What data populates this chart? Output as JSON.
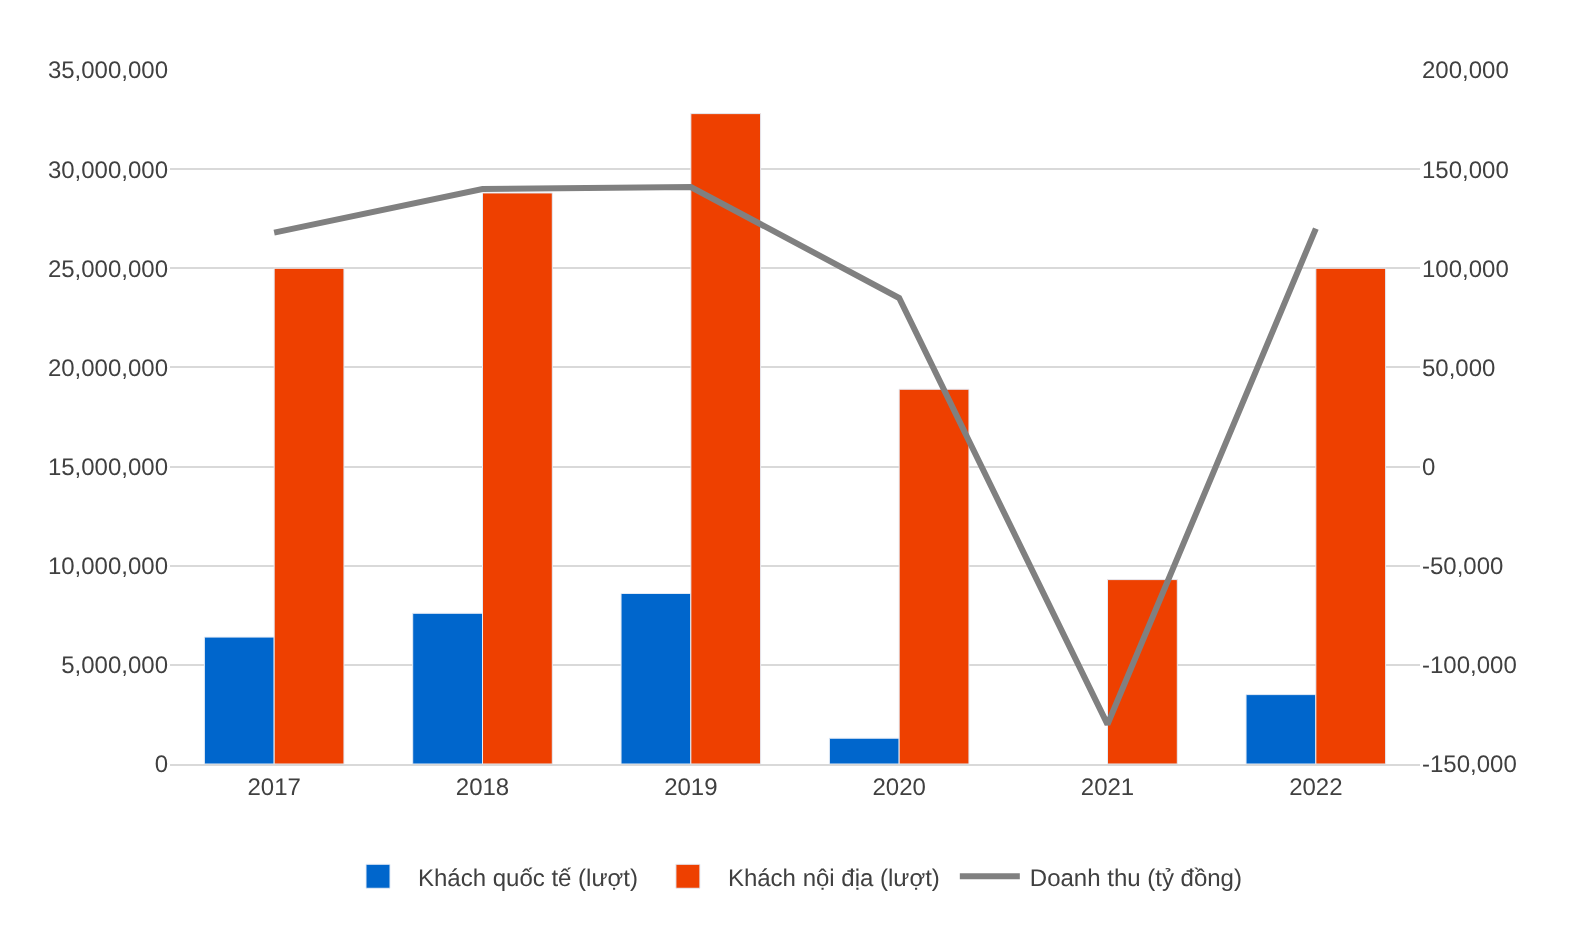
{
  "chart_data": {
    "type": "bar",
    "categories": [
      "2017",
      "2018",
      "2019",
      "2020",
      "2021",
      "2022"
    ],
    "series": [
      {
        "name": "Khách quốc tế (lượt)",
        "color": "#0066cc",
        "values": [
          6400000,
          7600000,
          8600000,
          1300000,
          null,
          3500000
        ]
      },
      {
        "name": "Khách nội địa (lượt)",
        "color": "#ee4000",
        "values": [
          25000000,
          28800000,
          32800000,
          18900000,
          9300000,
          25000000
        ]
      },
      {
        "name": "Doanh thu (tỷ đồng)",
        "type": "line",
        "axis": "y2",
        "color": "#808080",
        "values": [
          118000,
          140000,
          141000,
          85000,
          -130000,
          120000
        ]
      }
    ],
    "ylim": [
      0,
      35000000
    ],
    "yticks": [
      {
        "value": 0,
        "label": "0"
      },
      {
        "value": 5000000,
        "label": "5,000,000"
      },
      {
        "value": 10000000,
        "label": "10,000,000"
      },
      {
        "value": 15000000,
        "label": "15,000,000"
      },
      {
        "value": 20000000,
        "label": "20,000,000"
      },
      {
        "value": 25000000,
        "label": "25,000,000"
      },
      {
        "value": 30000000,
        "label": "30,000,000"
      },
      {
        "value": 35000000,
        "label": "35,000,000"
      }
    ],
    "y2lim": [
      -150000,
      200000
    ],
    "y2ticks": [
      {
        "value": -150000,
        "label": "-150,000"
      },
      {
        "value": -100000,
        "label": "-100,000"
      },
      {
        "value": -50000,
        "label": "-50,000"
      },
      {
        "value": 0,
        "label": "0"
      },
      {
        "value": 50000,
        "label": "50,000"
      },
      {
        "value": 100000,
        "label": "100,000"
      },
      {
        "value": 150000,
        "label": "150,000"
      },
      {
        "value": 200000,
        "label": "200,000"
      }
    ],
    "grid": "y",
    "legend": "bottom",
    "marker": "none",
    "line_style": "solid"
  }
}
